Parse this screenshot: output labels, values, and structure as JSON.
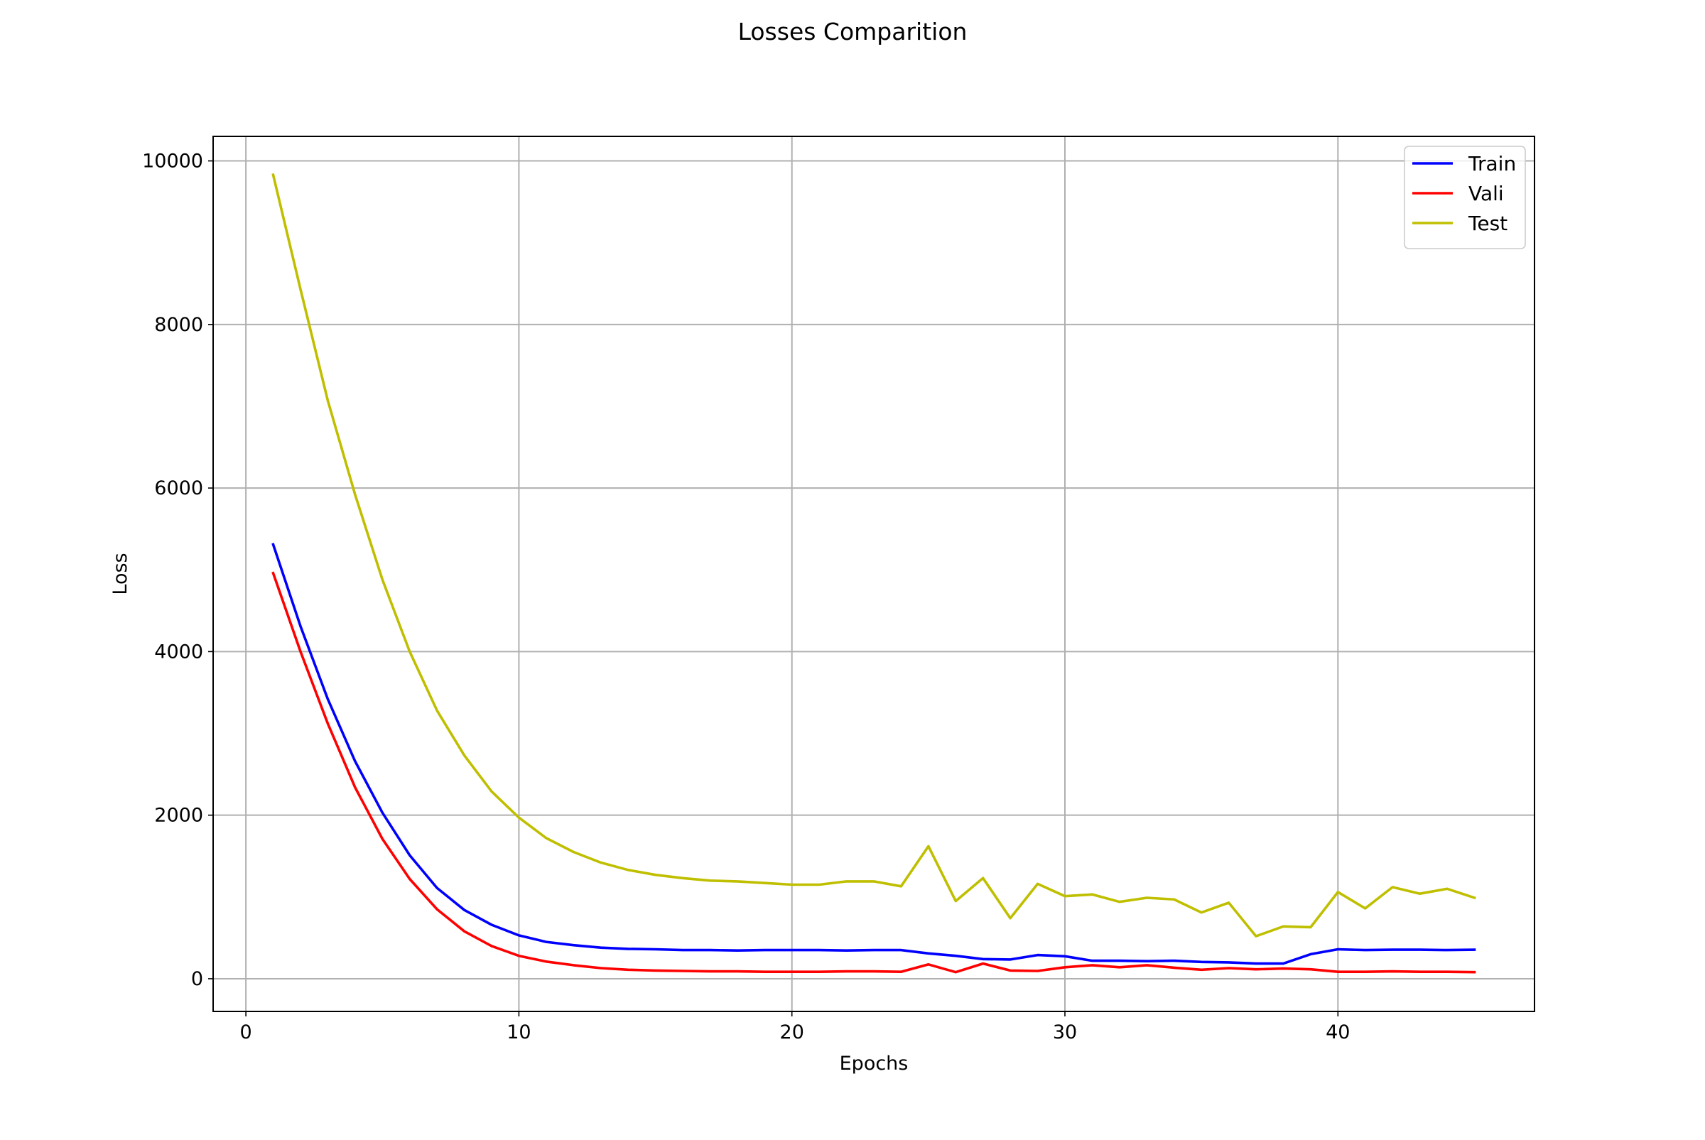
{
  "chart_data": {
    "type": "line",
    "title": "Losses Comparition",
    "xlabel": "Epochs",
    "ylabel": "Loss",
    "xlim": [
      -1.2,
      47.2
    ],
    "ylim": [
      -400,
      10300
    ],
    "xticks": [
      0,
      10,
      20,
      30,
      40
    ],
    "yticks": [
      0,
      2000,
      4000,
      6000,
      8000,
      10000
    ],
    "grid": true,
    "legend_position": "upper right",
    "x": [
      1,
      2,
      3,
      4,
      5,
      6,
      7,
      8,
      9,
      10,
      11,
      12,
      13,
      14,
      15,
      16,
      17,
      18,
      19,
      20,
      21,
      22,
      23,
      24,
      25,
      26,
      27,
      28,
      29,
      30,
      31,
      32,
      33,
      34,
      35,
      36,
      37,
      38,
      39,
      40,
      41,
      42,
      43,
      44,
      45
    ],
    "series": [
      {
        "name": "Train",
        "color": "#0000ff",
        "values": [
          5310,
          4310,
          3420,
          2660,
          2030,
          1510,
          1110,
          840,
          660,
          530,
          450,
          410,
          380,
          365,
          360,
          350,
          350,
          345,
          350,
          350,
          350,
          345,
          350,
          350,
          310,
          280,
          240,
          235,
          290,
          275,
          220,
          220,
          215,
          220,
          205,
          200,
          185,
          185,
          300,
          360,
          350,
          355,
          355,
          350,
          355
        ]
      },
      {
        "name": "Vali",
        "color": "#ff0000",
        "values": [
          4960,
          4000,
          3120,
          2340,
          1710,
          1220,
          850,
          580,
          400,
          280,
          210,
          165,
          130,
          110,
          100,
          95,
          90,
          90,
          85,
          85,
          85,
          90,
          90,
          85,
          175,
          80,
          185,
          100,
          95,
          140,
          165,
          140,
          165,
          135,
          110,
          130,
          115,
          125,
          115,
          85,
          85,
          90,
          85,
          85,
          80
        ]
      },
      {
        "name": "Test",
        "color": "#bfbf00",
        "values": [
          9830,
          8430,
          7070,
          5920,
          4880,
          4000,
          3280,
          2730,
          2290,
          1970,
          1720,
          1550,
          1420,
          1330,
          1270,
          1230,
          1200,
          1190,
          1170,
          1150,
          1150,
          1190,
          1190,
          1130,
          1620,
          950,
          1230,
          740,
          1160,
          1010,
          1030,
          940,
          990,
          970,
          810,
          930,
          520,
          640,
          630,
          1060,
          860,
          1120,
          1040,
          1100,
          990
        ]
      }
    ]
  }
}
